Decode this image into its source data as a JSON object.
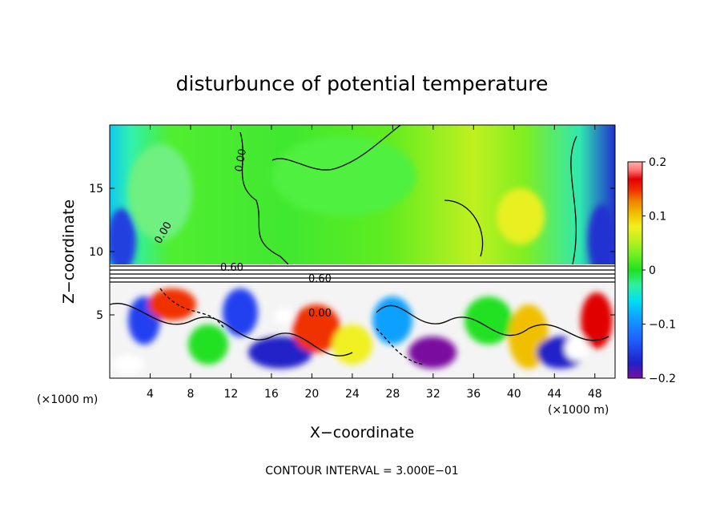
{
  "chart_data": {
    "type": "heatmap",
    "title": "disturbunce of potential temperature",
    "xlabel": "X−coordinate",
    "ylabel": "Z−coordinate",
    "x_unit": "(×1000 m)",
    "x_unit_right": "(×1000 m)",
    "xlim": [
      0,
      50
    ],
    "ylim": [
      0,
      20
    ],
    "x_ticks": [
      4,
      8,
      12,
      16,
      20,
      24,
      28,
      32,
      36,
      40,
      44,
      48
    ],
    "y_ticks": [
      5,
      10,
      15
    ],
    "colorbar": {
      "range": [
        -0.2,
        0.2
      ],
      "tick_values": [
        0.2,
        0.1,
        0,
        -0.1,
        -0.2
      ],
      "tick_labels": [
        "0.2",
        "0.1",
        "0",
        "−0.1",
        "−0.2"
      ],
      "colors": [
        "#7a0fa0",
        "#2020c8",
        "#2060ff",
        "#10a0ff",
        "#00e0f0",
        "#30f0a0",
        "#20e020",
        "#70f020",
        "#c0f020",
        "#f0f020",
        "#f0c000",
        "#f08000",
        "#f03000",
        "#e00000",
        "#ff7070",
        "#ffb0b0"
      ]
    },
    "contour_labels": [
      "0.60",
      "0.60",
      "0.00",
      "0.00",
      "0.00"
    ],
    "footer": "CONTOUR INTERVAL = 3.000E−01"
  }
}
